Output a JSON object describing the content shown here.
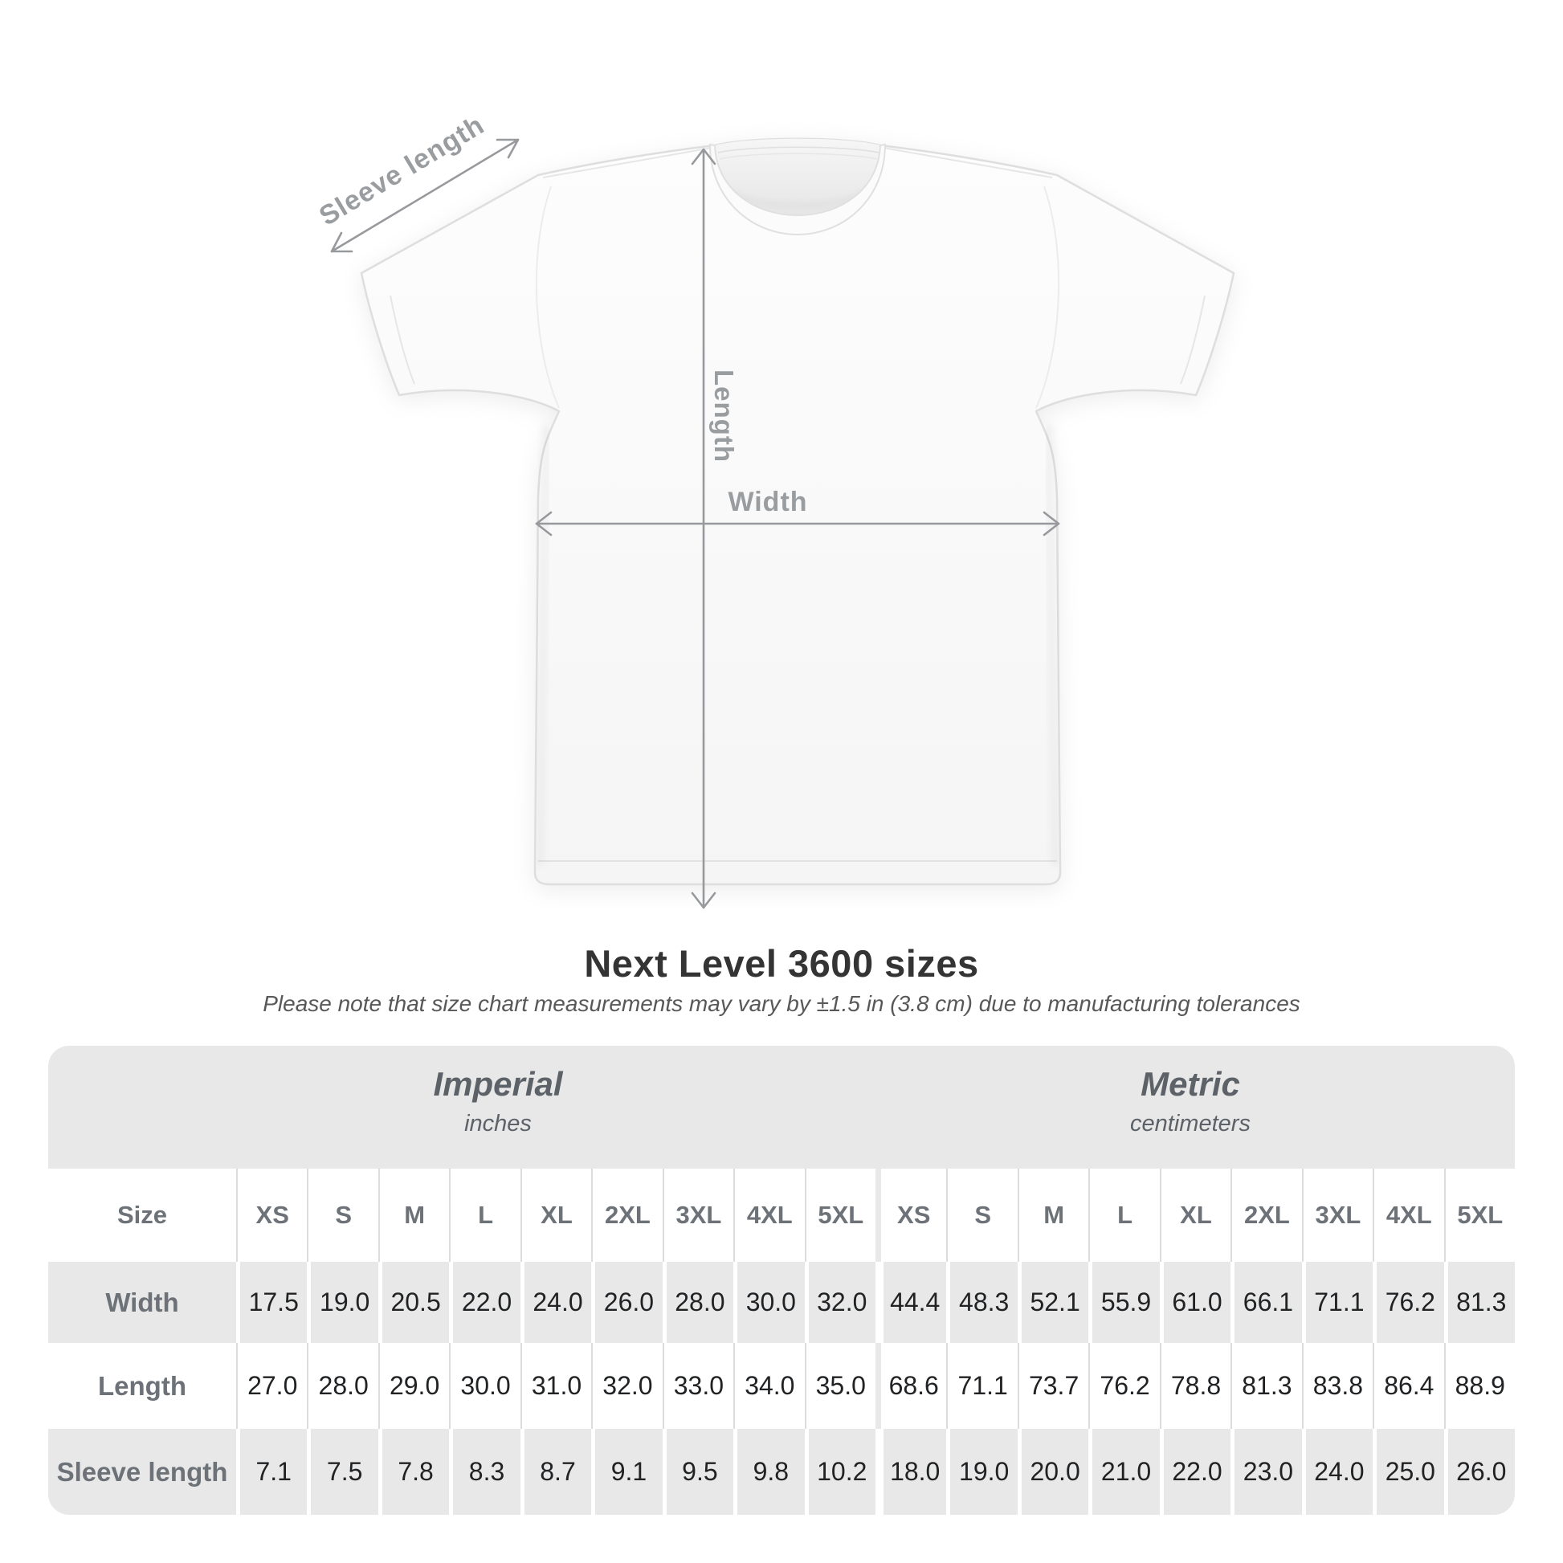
{
  "diagram": {
    "sleeve_length_label": "Sleeve length",
    "length_label": "Length",
    "width_label": "Width"
  },
  "chart_data": {
    "type": "table",
    "title": "Next Level 3600 sizes",
    "note": "Please note that size chart measurements may vary by ±1.5 in (3.8 cm) due to manufacturing tolerances",
    "unit_groups": [
      {
        "name": "Imperial",
        "unit": "inches"
      },
      {
        "name": "Metric",
        "unit": "centimeters"
      }
    ],
    "size_header_label": "Size",
    "sizes": [
      "XS",
      "S",
      "M",
      "L",
      "XL",
      "2XL",
      "3XL",
      "4XL",
      "5XL"
    ],
    "rows": [
      {
        "label": "Width",
        "imperial": [
          "17.5",
          "19.0",
          "20.5",
          "22.0",
          "24.0",
          "26.0",
          "28.0",
          "30.0",
          "32.0"
        ],
        "metric": [
          "44.4",
          "48.3",
          "52.1",
          "55.9",
          "61.0",
          "66.1",
          "71.1",
          "76.2",
          "81.3"
        ]
      },
      {
        "label": "Length",
        "imperial": [
          "27.0",
          "28.0",
          "29.0",
          "30.0",
          "31.0",
          "32.0",
          "33.0",
          "34.0",
          "35.0"
        ],
        "metric": [
          "68.6",
          "71.1",
          "73.7",
          "76.2",
          "78.8",
          "81.3",
          "83.8",
          "86.4",
          "88.9"
        ]
      },
      {
        "label": "Sleeve length",
        "imperial": [
          "7.1",
          "7.5",
          "7.8",
          "8.3",
          "8.7",
          "9.1",
          "9.5",
          "9.8",
          "10.2"
        ],
        "metric": [
          "18.0",
          "19.0",
          "20.0",
          "21.0",
          "22.0",
          "23.0",
          "24.0",
          "25.0",
          "26.0"
        ]
      }
    ]
  },
  "colors": {
    "table_gray": "#e8e8e8",
    "label_text": "#6c7277",
    "value_text": "#202224",
    "title_text": "#343434",
    "subtitle_text": "#585858",
    "annotation_gray": "#999da0",
    "shirt_outline": "#dedede"
  }
}
